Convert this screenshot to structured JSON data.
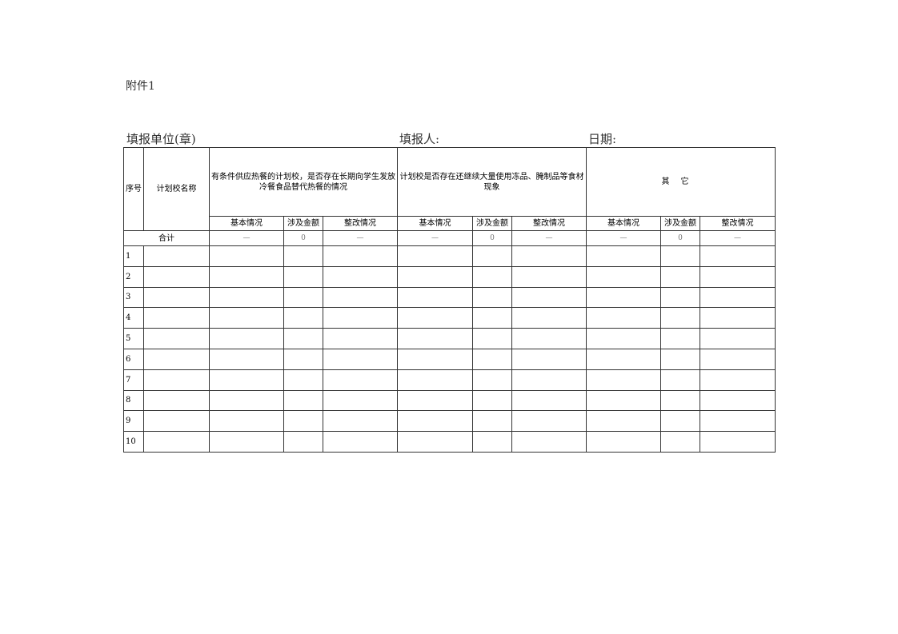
{
  "attachment_label": "附件1",
  "header": {
    "unit": "填报单位(章)",
    "filler": "填报人:",
    "date": "日期:"
  },
  "columns": {
    "seq": "序号",
    "school": "计划校名称",
    "groups": [
      "有条件供应热餐的计划校，是否存在长期向学生发放冷餐食品替代热餐的情况",
      "计划校是否存在还继续大量使用冻品、腌制品等食材现象",
      "其它"
    ],
    "sub": [
      "基本情况",
      "涉及金额",
      "整改情况"
    ]
  },
  "total": {
    "label": "合计",
    "values": [
      "—",
      "0",
      "—",
      "—",
      "0",
      "—",
      "—",
      "0",
      "—"
    ]
  },
  "rows": [
    "1",
    "2",
    "3",
    "4",
    "5",
    "6",
    "7",
    "8",
    "9",
    "10"
  ]
}
